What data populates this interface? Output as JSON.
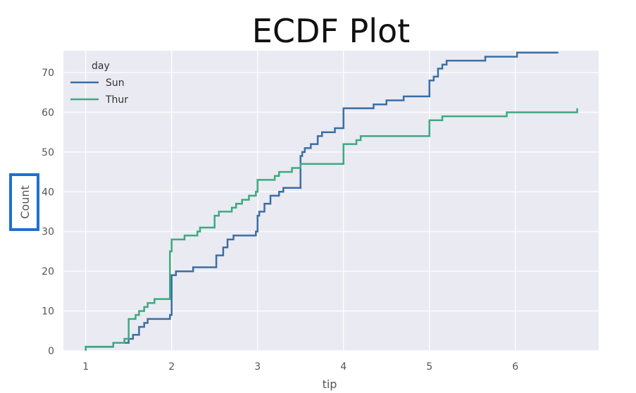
{
  "chart_data": {
    "type": "line",
    "subtype": "ecdf-step",
    "title": "ECDF Plot",
    "xlabel": "tip",
    "ylabel": "Count",
    "xlim": [
      0.74,
      6.97
    ],
    "ylim": [
      0,
      75.5
    ],
    "xticks": [
      1,
      2,
      3,
      4,
      5,
      6
    ],
    "yticks": [
      0,
      10,
      20,
      30,
      40,
      50,
      60,
      70
    ],
    "grid": true,
    "legend": {
      "title": "day",
      "placement": "top-left"
    },
    "series": [
      {
        "name": "Sun",
        "color": "#3b6ea5",
        "points": [
          [
            1.0,
            1
          ],
          [
            1.25,
            1
          ],
          [
            1.32,
            2
          ],
          [
            1.5,
            3
          ],
          [
            1.55,
            4
          ],
          [
            1.62,
            6
          ],
          [
            1.68,
            7
          ],
          [
            1.72,
            8
          ],
          [
            1.98,
            9
          ],
          [
            2.0,
            19
          ],
          [
            2.05,
            20
          ],
          [
            2.25,
            21
          ],
          [
            2.5,
            21
          ],
          [
            2.52,
            24
          ],
          [
            2.6,
            26
          ],
          [
            2.65,
            28
          ],
          [
            2.72,
            29
          ],
          [
            2.98,
            30
          ],
          [
            3.0,
            34
          ],
          [
            3.02,
            35
          ],
          [
            3.08,
            37
          ],
          [
            3.15,
            39
          ],
          [
            3.25,
            40
          ],
          [
            3.3,
            41
          ],
          [
            3.48,
            41
          ],
          [
            3.5,
            49
          ],
          [
            3.52,
            50
          ],
          [
            3.55,
            51
          ],
          [
            3.62,
            52
          ],
          [
            3.7,
            54
          ],
          [
            3.75,
            55
          ],
          [
            3.9,
            56
          ],
          [
            3.99,
            56
          ],
          [
            4.0,
            61
          ],
          [
            4.3,
            61
          ],
          [
            4.35,
            62
          ],
          [
            4.5,
            63
          ],
          [
            4.7,
            64
          ],
          [
            4.98,
            64
          ],
          [
            5.0,
            68
          ],
          [
            5.05,
            69
          ],
          [
            5.1,
            71
          ],
          [
            5.15,
            72
          ],
          [
            5.2,
            73
          ],
          [
            5.6,
            73
          ],
          [
            5.65,
            74
          ],
          [
            6.0,
            74
          ],
          [
            6.02,
            75
          ],
          [
            6.5,
            75
          ]
        ]
      },
      {
        "name": "Thur",
        "color": "#3daa80",
        "points": [
          [
            1.0,
            1
          ],
          [
            1.3,
            1
          ],
          [
            1.32,
            2
          ],
          [
            1.45,
            3
          ],
          [
            1.5,
            8
          ],
          [
            1.58,
            9
          ],
          [
            1.62,
            10
          ],
          [
            1.68,
            11
          ],
          [
            1.72,
            12
          ],
          [
            1.8,
            13
          ],
          [
            1.97,
            13
          ],
          [
            1.98,
            25
          ],
          [
            2.0,
            28
          ],
          [
            2.15,
            29
          ],
          [
            2.3,
            30
          ],
          [
            2.33,
            31
          ],
          [
            2.48,
            31
          ],
          [
            2.5,
            34
          ],
          [
            2.55,
            35
          ],
          [
            2.7,
            36
          ],
          [
            2.75,
            37
          ],
          [
            2.82,
            38
          ],
          [
            2.9,
            39
          ],
          [
            2.98,
            40
          ],
          [
            3.0,
            43
          ],
          [
            3.2,
            44
          ],
          [
            3.25,
            45
          ],
          [
            3.4,
            46
          ],
          [
            3.48,
            46
          ],
          [
            3.5,
            47
          ],
          [
            3.98,
            47
          ],
          [
            4.0,
            52
          ],
          [
            4.15,
            53
          ],
          [
            4.2,
            54
          ],
          [
            4.98,
            54
          ],
          [
            5.0,
            58
          ],
          [
            5.15,
            59
          ],
          [
            5.85,
            59
          ],
          [
            5.9,
            60
          ],
          [
            6.7,
            60
          ],
          [
            6.72,
            61
          ]
        ]
      }
    ]
  }
}
